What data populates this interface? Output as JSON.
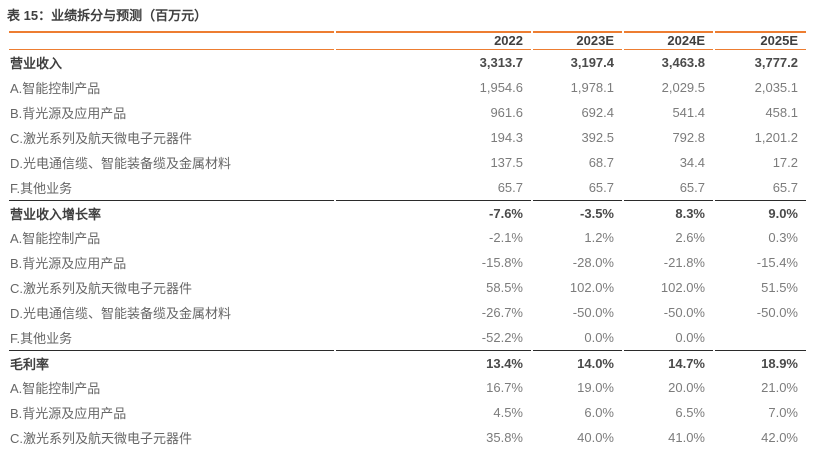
{
  "title": "表 15：业绩拆分与预测（百万元）",
  "colors": {
    "accent": "#ED7D31",
    "divider": "#2B2B2B",
    "bold_text": "#3F3F3F",
    "label_text": "#666666",
    "value_text": "#7C7C7C",
    "background": "#FFFFFF"
  },
  "table": {
    "columns": [
      "",
      "2022",
      "2023E",
      "2024E",
      "2025E"
    ],
    "sections": [
      {
        "header": {
          "label": "营业收入",
          "values": [
            "3,313.7",
            "3,197.4",
            "3,463.8",
            "3,777.2"
          ]
        },
        "rows": [
          {
            "label": "A.智能控制产品",
            "values": [
              "1,954.6",
              "1,978.1",
              "2,029.5",
              "2,035.1"
            ]
          },
          {
            "label": "B.背光源及应用产品",
            "values": [
              "961.6",
              "692.4",
              "541.4",
              "458.1"
            ]
          },
          {
            "label": "C.激光系列及航天微电子元器件",
            "values": [
              "194.3",
              "392.5",
              "792.8",
              "1,201.2"
            ]
          },
          {
            "label": "D.光电通信缆、智能装备缆及金属材料",
            "values": [
              "137.5",
              "68.7",
              "34.4",
              "17.2"
            ]
          },
          {
            "label": "F.其他业务",
            "values": [
              "65.7",
              "65.7",
              "65.7",
              "65.7"
            ]
          }
        ]
      },
      {
        "header": {
          "label": "营业收入增长率",
          "values": [
            "-7.6%",
            "-3.5%",
            "8.3%",
            "9.0%"
          ]
        },
        "rows": [
          {
            "label": "A.智能控制产品",
            "values": [
              "-2.1%",
              "1.2%",
              "2.6%",
              "0.3%"
            ]
          },
          {
            "label": "B.背光源及应用产品",
            "values": [
              "-15.8%",
              "-28.0%",
              "-21.8%",
              "-15.4%"
            ]
          },
          {
            "label": "C.激光系列及航天微电子元器件",
            "values": [
              "58.5%",
              "102.0%",
              "102.0%",
              "51.5%"
            ]
          },
          {
            "label": "D.光电通信缆、智能装备缆及金属材料",
            "values": [
              "-26.7%",
              "-50.0%",
              "-50.0%",
              "-50.0%"
            ]
          },
          {
            "label": "F.其他业务",
            "values": [
              "-52.2%",
              "0.0%",
              "0.0%",
              ""
            ]
          }
        ]
      },
      {
        "header": {
          "label": "毛利率",
          "values": [
            "13.4%",
            "14.0%",
            "14.7%",
            "18.9%"
          ]
        },
        "rows": [
          {
            "label": "A.智能控制产品",
            "values": [
              "16.7%",
              "19.0%",
              "20.0%",
              "21.0%"
            ]
          },
          {
            "label": "B.背光源及应用产品",
            "values": [
              "4.5%",
              "6.0%",
              "6.5%",
              "7.0%"
            ]
          },
          {
            "label": "C.激光系列及航天微电子元器件",
            "values": [
              "35.8%",
              "40.0%",
              "41.0%",
              "42.0%"
            ]
          }
        ]
      }
    ]
  }
}
